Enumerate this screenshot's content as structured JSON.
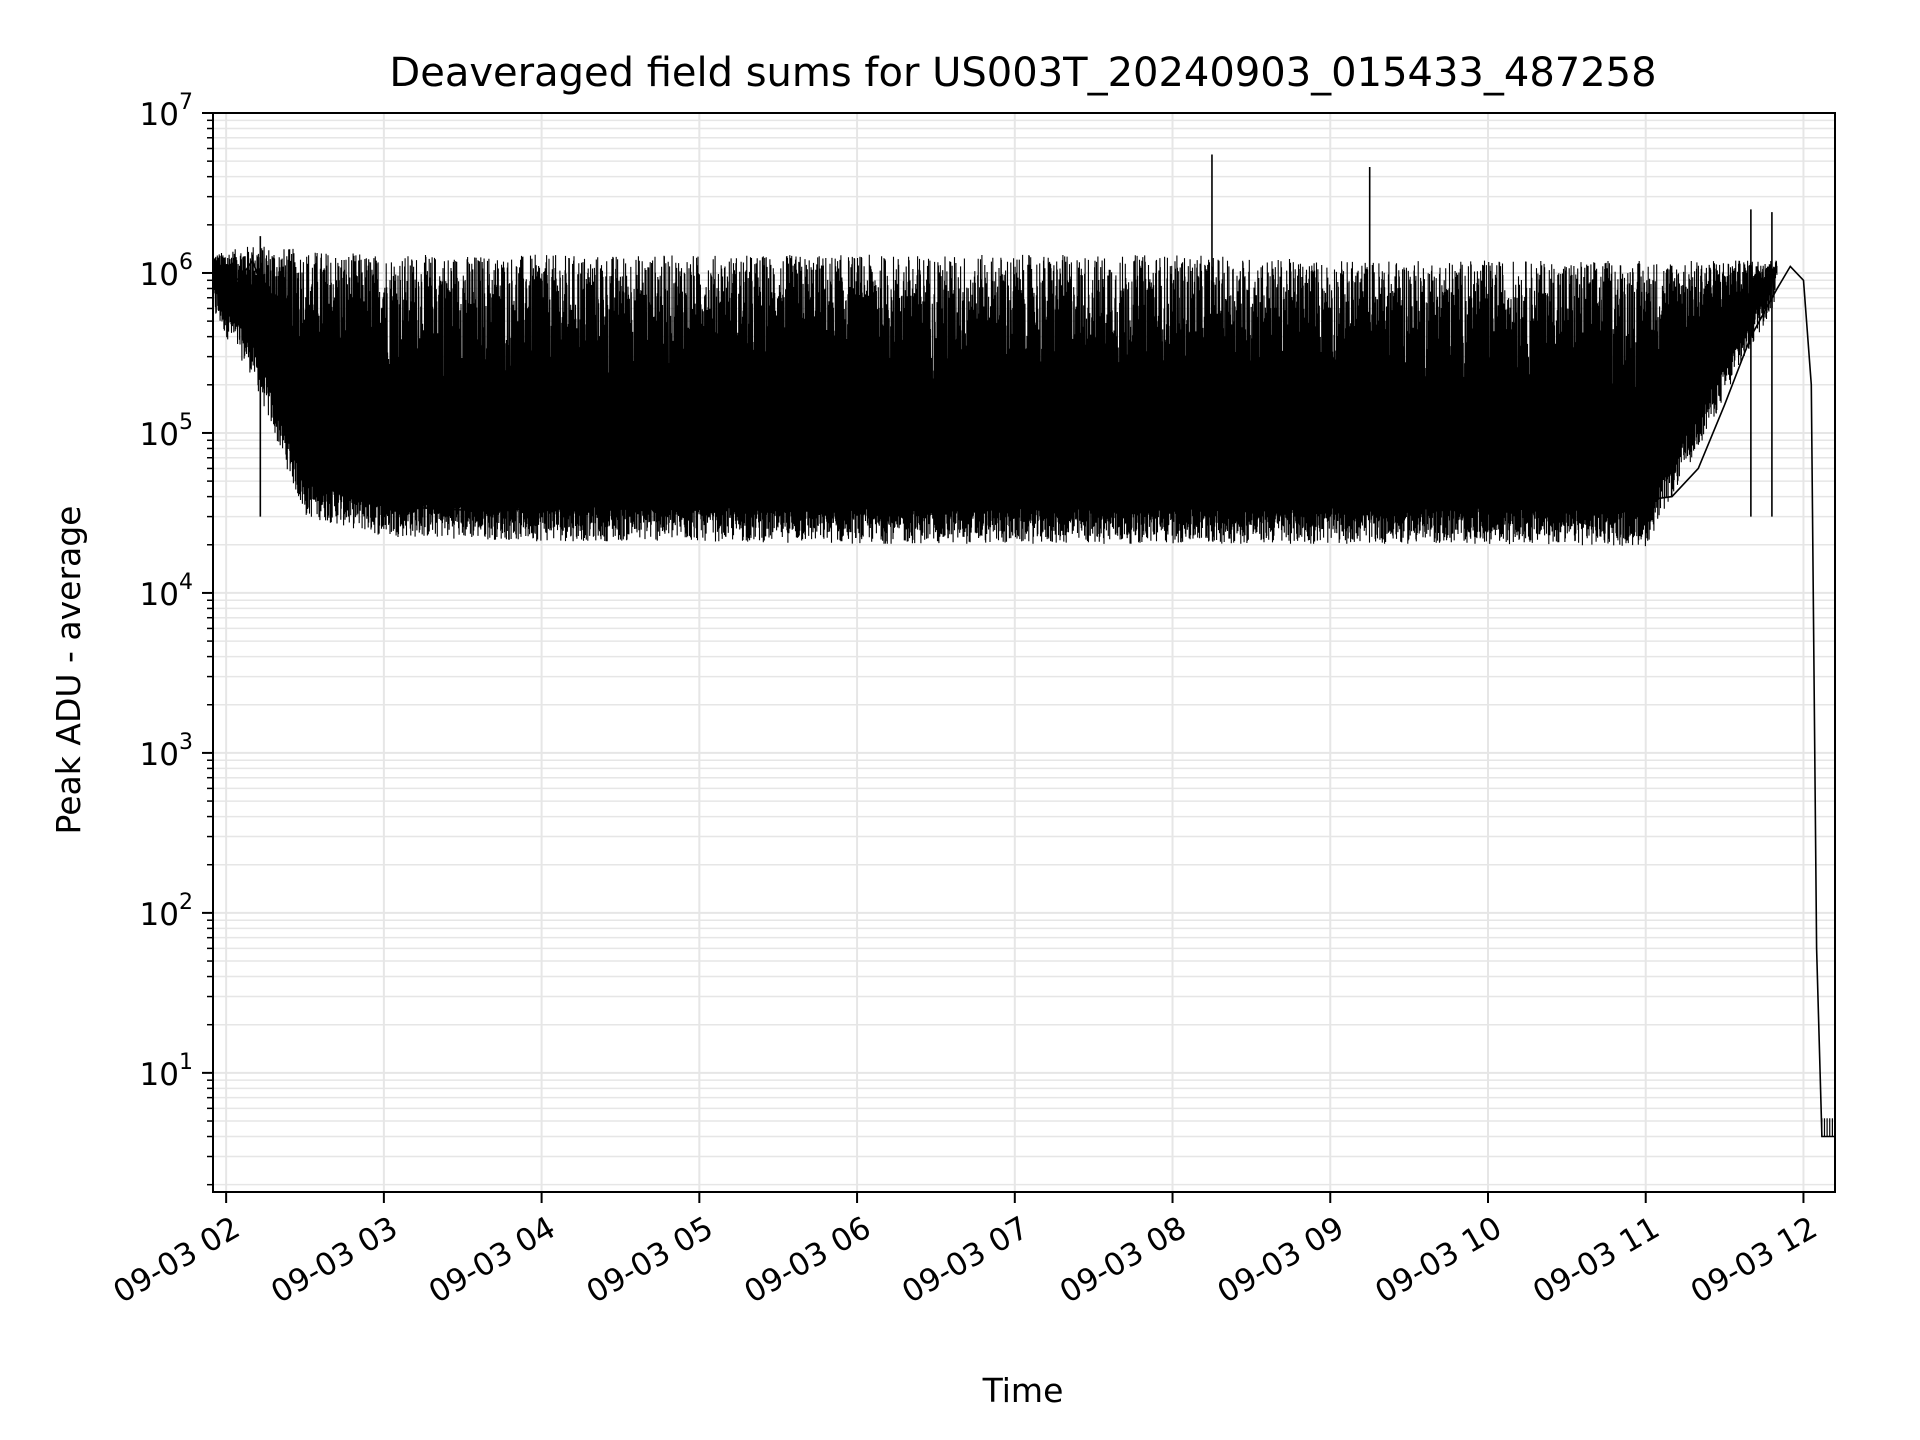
{
  "chart_data": {
    "type": "line",
    "title": "Deaveraged field sums for US003T_20240903_015433_487258",
    "xlabel": "Time",
    "ylabel": "Peak ADU - average",
    "yscale": "log",
    "ylim": [
      1.8,
      10000000
    ],
    "xlim": [
      "09-03 01:55",
      "09-03 12:12"
    ],
    "grid": true,
    "line_color": "#000000",
    "grid_color": "#e6e6e6",
    "x_ticks": [
      "09-03 02",
      "09-03 03",
      "09-03 04",
      "09-03 05",
      "09-03 06",
      "09-03 07",
      "09-03 08",
      "09-03 09",
      "09-03 10",
      "09-03 11",
      "09-03 12"
    ],
    "y_ticks": [
      {
        "base": "10",
        "exp": "1"
      },
      {
        "base": "10",
        "exp": "2"
      },
      {
        "base": "10",
        "exp": "3"
      },
      {
        "base": "10",
        "exp": "4"
      },
      {
        "base": "10",
        "exp": "5"
      },
      {
        "base": "10",
        "exp": "6"
      },
      {
        "base": "10",
        "exp": "7"
      }
    ],
    "series": [
      {
        "x": [
          "09-03 01:55",
          "09-03 02:00",
          "09-03 02:05",
          "09-03 02:10",
          "09-03 02:15",
          "09-03 02:20",
          "09-03 02:25",
          "09-03 02:30",
          "09-03 02:35",
          "09-03 02:40",
          "09-03 02:45",
          "09-03 02:50",
          "09-03 03:00",
          "09-03 03:15",
          "09-03 03:30",
          "09-03 03:45",
          "09-03 04:00",
          "09-03 04:30",
          "09-03 05:00",
          "09-03 05:30",
          "09-03 06:00",
          "09-03 06:30",
          "09-03 07:00",
          "09-03 07:30",
          "09-03 08:00",
          "09-03 08:30",
          "09-03 09:00",
          "09-03 09:30",
          "09-03 10:00",
          "09-03 10:30",
          "09-03 11:00",
          "09-03 11:10",
          "09-03 11:20",
          "09-03 11:30",
          "09-03 11:40",
          "09-03 11:50",
          "09-03 11:55",
          "09-03 12:00",
          "09-03 12:03",
          "09-03 12:05",
          "09-03 12:07",
          "09-03 12:12"
        ],
        "y": [
          1100000,
          1000000,
          900000,
          1200000,
          700000,
          400000,
          200000,
          100000,
          60000,
          45000,
          40000,
          38000,
          35000,
          34000,
          33000,
          33000,
          34000,
          35000,
          36000,
          36000,
          35000,
          34000,
          34000,
          35000,
          36000,
          37000,
          38000,
          38000,
          36000,
          36000,
          38000,
          40000,
          60000,
          150000,
          400000,
          800000,
          1100000,
          900000,
          200000,
          60,
          4,
          4
        ]
      }
    ],
    "envelope": {
      "x": [
        "09-03 01:55",
        "09-03 02:10",
        "09-03 02:30",
        "09-03 03:00",
        "09-03 04:00",
        "09-03 05:00",
        "09-03 06:00",
        "09-03 07:00",
        "09-03 08:00",
        "09-03 09:00",
        "09-03 10:00",
        "09-03 11:00",
        "09-03 11:50"
      ],
      "upper": [
        1300000,
        1500000,
        1400000,
        1300000,
        1300000,
        1300000,
        1300000,
        1300000,
        1300000,
        1200000,
        1200000,
        1200000,
        1200000
      ],
      "lower": [
        700000,
        300000,
        40000,
        30000,
        28000,
        28000,
        27000,
        27000,
        27000,
        27000,
        27000,
        26000,
        900000
      ]
    },
    "spikes": [
      {
        "x": "09-03 08:15",
        "y": 5500000
      },
      {
        "x": "09-03 09:15",
        "y": 4600000
      },
      {
        "x": "09-03 11:40",
        "y": 2500000
      },
      {
        "x": "09-03 11:48",
        "y": 2400000
      },
      {
        "x": "09-03 02:13",
        "y": 1700000
      }
    ]
  }
}
